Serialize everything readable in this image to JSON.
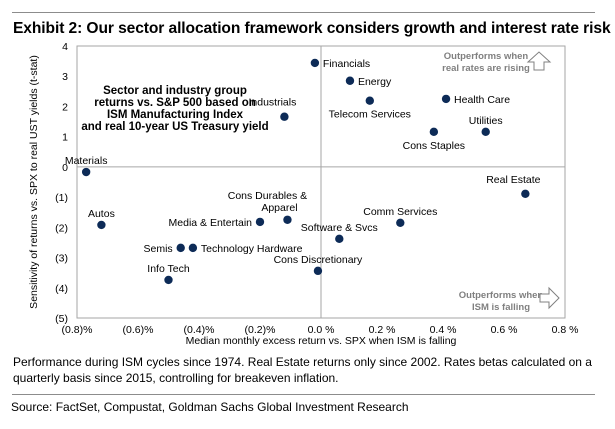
{
  "title": "Exhibit 2: Our sector allocation framework considers growth and interest rate risk",
  "note": "Performance during ISM cycles since 1974. Real Estate returns only since 2002. Rates betas calculated on a quarterly basis since 2015, controlling for breakeven inflation.",
  "source": "Source: FactSet, Compustat, Goldman Sachs Global Investment Research",
  "colors": {
    "dot": "#0d2b57",
    "axis": "#a6a6a6",
    "annotation": "#808080"
  },
  "chart_data": {
    "type": "scatter",
    "title": "",
    "inset_title": [
      "Sector and industry group",
      "returns vs. S&P 500 based on",
      "ISM Manufacturing Index",
      "and real 10-year US Treasury yield"
    ],
    "xlabel": "Median monthly excess return vs. SPX when ISM is falling",
    "ylabel": "Sensitivity of returns vs. SPX to real UST yields (t-stat)",
    "xlim": [
      -0.8,
      0.8
    ],
    "ylim": [
      -5,
      4
    ],
    "grid": false,
    "x_ticks": [
      {
        "value": -0.8,
        "label": "(0.8)%"
      },
      {
        "value": -0.6,
        "label": "(0.6)%"
      },
      {
        "value": -0.4,
        "label": "(0.4)%"
      },
      {
        "value": -0.2,
        "label": "(0.2)%"
      },
      {
        "value": 0.0,
        "label": "0.0 %"
      },
      {
        "value": 0.2,
        "label": "0.2 %"
      },
      {
        "value": 0.4,
        "label": "0.4 %"
      },
      {
        "value": 0.6,
        "label": "0.6 %"
      },
      {
        "value": 0.8,
        "label": "0.8 %"
      }
    ],
    "y_ticks": [
      {
        "value": 4,
        "label": "4"
      },
      {
        "value": 3,
        "label": "3"
      },
      {
        "value": 2,
        "label": "2"
      },
      {
        "value": 1,
        "label": "1"
      },
      {
        "value": 0,
        "label": "0"
      },
      {
        "value": -1,
        "label": "(1)"
      },
      {
        "value": -2,
        "label": "(2)"
      },
      {
        "value": -3,
        "label": "(3)"
      },
      {
        "value": -4,
        "label": "(4)"
      },
      {
        "value": -5,
        "label": "(5)"
      }
    ],
    "annotations": [
      {
        "text": [
          "Outperforms when",
          "real rates are rising"
        ],
        "arrow": "up",
        "position": "top-right"
      },
      {
        "text": [
          "Outperforms when",
          "ISM is falling"
        ],
        "arrow": "right",
        "position": "bottom-right"
      }
    ],
    "points": [
      {
        "label": "Financials",
        "x": -0.02,
        "y": 3.44,
        "label_pos": "right"
      },
      {
        "label": "Energy",
        "x": 0.095,
        "y": 2.85,
        "label_pos": "right"
      },
      {
        "label": "Telecom Services",
        "x": 0.16,
        "y": 2.19,
        "label_pos": "below"
      },
      {
        "label": "Health Care",
        "x": 0.41,
        "y": 2.25,
        "label_pos": "right"
      },
      {
        "label": "Industrials",
        "x": -0.12,
        "y": 1.66,
        "label_pos": "above-left"
      },
      {
        "label": "Cons Staples",
        "x": 0.37,
        "y": 1.16,
        "label_pos": "below"
      },
      {
        "label": "Utilities",
        "x": 0.54,
        "y": 1.16,
        "label_pos": "above"
      },
      {
        "label": "Materials",
        "x": -0.77,
        "y": -0.17,
        "label_pos": "above"
      },
      {
        "label": "Real Estate",
        "x": 0.67,
        "y": -0.89,
        "label_pos": "above-left"
      },
      {
        "label": "Autos",
        "x": -0.72,
        "y": -1.92,
        "label_pos": "above"
      },
      {
        "label": "Cons Durables & Apparel",
        "x": -0.11,
        "y": -1.75,
        "label_pos": "above-two-line"
      },
      {
        "label": "Media & Entertain",
        "x": -0.2,
        "y": -1.82,
        "label_pos": "left"
      },
      {
        "label": "Comm Services",
        "x": 0.26,
        "y": -1.85,
        "label_pos": "above"
      },
      {
        "label": "Software & Svcs",
        "x": 0.06,
        "y": -2.38,
        "label_pos": "above"
      },
      {
        "label": "Semis",
        "x": -0.46,
        "y": -2.68,
        "label_pos": "left"
      },
      {
        "label": "Technology Hardware",
        "x": -0.42,
        "y": -2.68,
        "label_pos": "right"
      },
      {
        "label": "Cons Discretionary",
        "x": -0.01,
        "y": -3.44,
        "label_pos": "above"
      },
      {
        "label": "Info Tech",
        "x": -0.5,
        "y": -3.74,
        "label_pos": "above"
      }
    ]
  }
}
